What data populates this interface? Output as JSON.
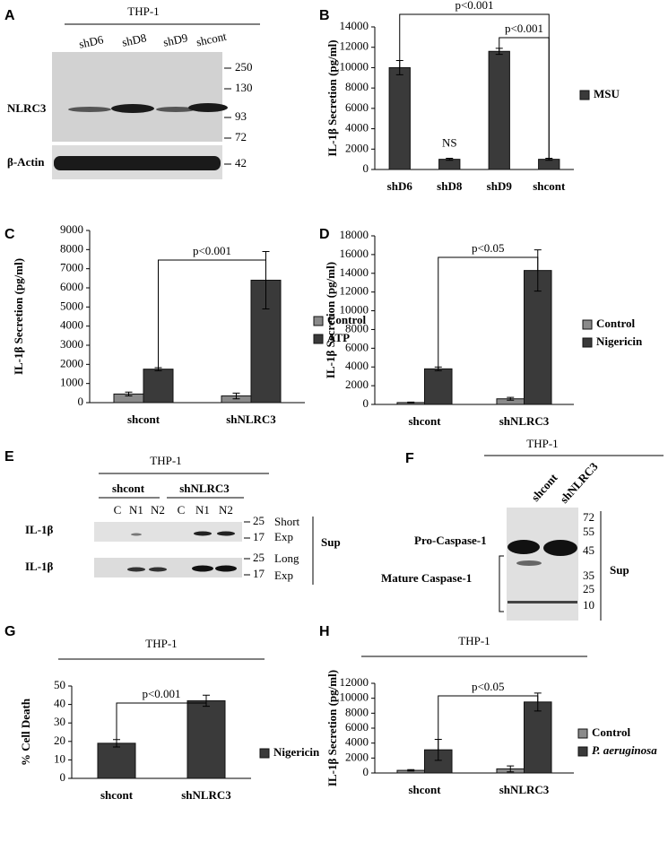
{
  "panels": [
    "A",
    "B",
    "C",
    "D",
    "E",
    "F",
    "G",
    "H"
  ],
  "blots": {
    "A": {
      "title": "THP-1",
      "lanes": [
        "shD6",
        "shD8",
        "shD9",
        "shcont"
      ],
      "rows": [
        "NLRC3",
        "β-Actin"
      ],
      "markers": [
        250,
        130,
        93,
        72,
        42
      ]
    },
    "E": {
      "title": "THP-1",
      "groups": [
        "shcont",
        "shNLRC3"
      ],
      "lanes": [
        "C",
        "N1",
        "N2",
        "C",
        "N1",
        "N2"
      ],
      "rows": [
        "IL-1β",
        "IL-1β"
      ],
      "markers": [
        25,
        17,
        25,
        17
      ],
      "exposures": [
        [
          "Short",
          "Exp"
        ],
        [
          "Long",
          "Exp"
        ]
      ],
      "fraction": "Sup"
    },
    "F": {
      "title": "THP-1",
      "lanes": [
        "shcont",
        "shNLRC3"
      ],
      "rows": [
        "Pro-Caspase-1",
        "Mature Caspase-1"
      ],
      "markers": [
        72,
        55,
        45,
        35,
        25,
        10
      ],
      "fraction": "Sup"
    }
  },
  "chart_data": [
    {
      "type": "bar",
      "y_label": "IL-1β Secretion (pg/ml)",
      "categories": [
        "shD6",
        "shD8",
        "shD9",
        "shcont"
      ],
      "series": [
        {
          "name": "MSU",
          "color": "#3a3a3a",
          "values": [
            10000,
            1000,
            11600,
            1000
          ],
          "errors": [
            700,
            100,
            300,
            100
          ]
        }
      ],
      "ylim": [
        0,
        14000
      ],
      "yticks": [
        0,
        2000,
        4000,
        6000,
        8000,
        10000,
        12000,
        14000
      ],
      "annotations": [
        "p<0.001",
        "p<0.001",
        "NS"
      ]
    },
    {
      "type": "bar",
      "y_label": "IL-1β Secretion (pg/ml)",
      "categories": [
        "shcont",
        "shNLRC3"
      ],
      "series": [
        {
          "name": "Control",
          "color": "#8a8a8a",
          "values": [
            450,
            350
          ],
          "errors": [
            100,
            150
          ]
        },
        {
          "name": "ATP",
          "color": "#3a3a3a",
          "values": [
            1750,
            6400
          ],
          "errors": [
            80,
            1500
          ]
        }
      ],
      "ylim": [
        0,
        9000
      ],
      "yticks": [
        0,
        1000,
        2000,
        3000,
        4000,
        5000,
        6000,
        7000,
        8000,
        9000
      ],
      "annotations": [
        "p<0.001"
      ]
    },
    {
      "type": "bar",
      "y_label": "IL-1β Secretion (pg/ml)",
      "categories": [
        "shcont",
        "shNLRC3"
      ],
      "series": [
        {
          "name": "Control",
          "color": "#8a8a8a",
          "values": [
            200,
            600
          ],
          "errors": [
            50,
            150
          ]
        },
        {
          "name": "Nigericin",
          "color": "#3a3a3a",
          "values": [
            3800,
            14300
          ],
          "errors": [
            200,
            2200
          ]
        }
      ],
      "ylim": [
        0,
        18000
      ],
      "yticks": [
        0,
        2000,
        4000,
        6000,
        8000,
        10000,
        12000,
        14000,
        16000,
        18000
      ],
      "annotations": [
        "p<0.05"
      ]
    },
    {
      "type": "bar",
      "title": "THP-1",
      "y_label": "% Cell Death",
      "categories": [
        "shcont",
        "shNLRC3"
      ],
      "series": [
        {
          "name": "Nigericin",
          "color": "#3a3a3a",
          "values": [
            19,
            42
          ],
          "errors": [
            2,
            3
          ]
        }
      ],
      "ylim": [
        0,
        50
      ],
      "yticks": [
        0,
        10,
        20,
        30,
        40,
        50
      ],
      "annotations": [
        "p<0.001"
      ]
    },
    {
      "type": "bar",
      "title": "THP-1",
      "y_label": "IL-1β  Secretion (pg/ml)",
      "categories": [
        "shcont",
        "shNLRC3"
      ],
      "series": [
        {
          "name": "Control",
          "color": "#8a8a8a",
          "values": [
            350,
            550
          ],
          "errors": [
            100,
            400
          ]
        },
        {
          "name": "P. aeruginosa",
          "color": "#3a3a3a",
          "values": [
            3100,
            9500
          ],
          "errors": [
            1400,
            1200
          ]
        }
      ],
      "ylim": [
        0,
        12000
      ],
      "yticks": [
        0,
        2000,
        4000,
        6000,
        8000,
        10000,
        12000
      ],
      "annotations": [
        "p<0.05"
      ]
    }
  ]
}
